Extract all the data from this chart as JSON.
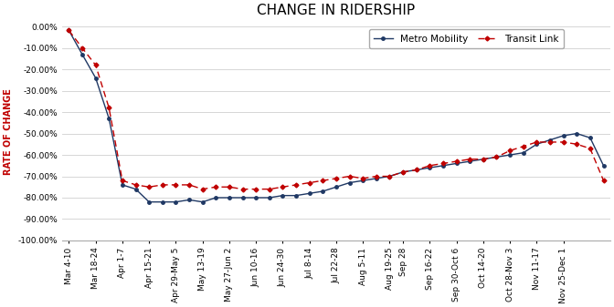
{
  "title": "CHANGE IN RIDERSHIP",
  "ylabel": "RATE OF CHANGE",
  "ylim": [
    -1.0,
    0.02
  ],
  "yticks": [
    0.0,
    -0.1,
    -0.2,
    -0.3,
    -0.4,
    -0.5,
    -0.6,
    -0.7,
    -0.8,
    -0.9,
    -1.0
  ],
  "categories": [
    "Mar 4-10",
    "Mar 18-24",
    "Apr 1-7",
    "Apr 15-21",
    "Apr 29-May 5",
    "May 13-19",
    "May 27-Jun 2",
    "Jun 10-16",
    "Jun 24-30",
    "Jul 8-14",
    "Jul 22-28",
    "Aug 5-11",
    "Aug 19-25",
    "Sep 28",
    "Sep 16-22",
    "Sep 30-Oct 6",
    "Oct 14-20",
    "Oct 28-Nov 3",
    "Nov 11-17",
    "Nov 25-Dec 1"
  ],
  "x_indices": [
    0,
    2,
    4,
    6,
    8,
    10,
    12,
    14,
    16,
    18,
    20,
    22,
    24,
    25,
    27,
    29,
    31,
    33,
    35,
    37
  ],
  "metro_mobility": [
    -0.018,
    -0.13,
    -0.24,
    -0.43,
    -0.74,
    -0.76,
    -0.82,
    -0.82,
    -0.82,
    -0.81,
    -0.82,
    -0.8,
    -0.8,
    -0.8,
    -0.8,
    -0.8,
    -0.79,
    -0.79,
    -0.78,
    -0.77,
    -0.75,
    -0.73,
    -0.72,
    -0.71,
    -0.7,
    -0.68,
    -0.67,
    -0.66,
    -0.65,
    -0.64,
    -0.63,
    -0.62,
    -0.61,
    -0.6,
    -0.59,
    -0.55,
    -0.53,
    -0.51,
    -0.5,
    -0.52,
    -0.65
  ],
  "transit_link": [
    -0.018,
    -0.1,
    -0.18,
    -0.38,
    -0.72,
    -0.74,
    -0.75,
    -0.74,
    -0.74,
    -0.74,
    -0.76,
    -0.75,
    -0.75,
    -0.76,
    -0.76,
    -0.76,
    -0.75,
    -0.74,
    -0.73,
    -0.72,
    -0.71,
    -0.7,
    -0.71,
    -0.7,
    -0.7,
    -0.68,
    -0.67,
    -0.65,
    -0.64,
    -0.63,
    -0.62,
    -0.62,
    -0.61,
    -0.58,
    -0.56,
    -0.54,
    -0.54,
    -0.54,
    -0.55,
    -0.57,
    -0.72
  ],
  "mm_color": "#1F3864",
  "tl_color": "#C00000",
  "background_color": "#FFFFFF",
  "grid_color": "#D0D0D0",
  "title_fontsize": 11,
  "axis_label_fontsize": 7,
  "tick_fontsize": 6.5,
  "legend_fontsize": 7.5
}
